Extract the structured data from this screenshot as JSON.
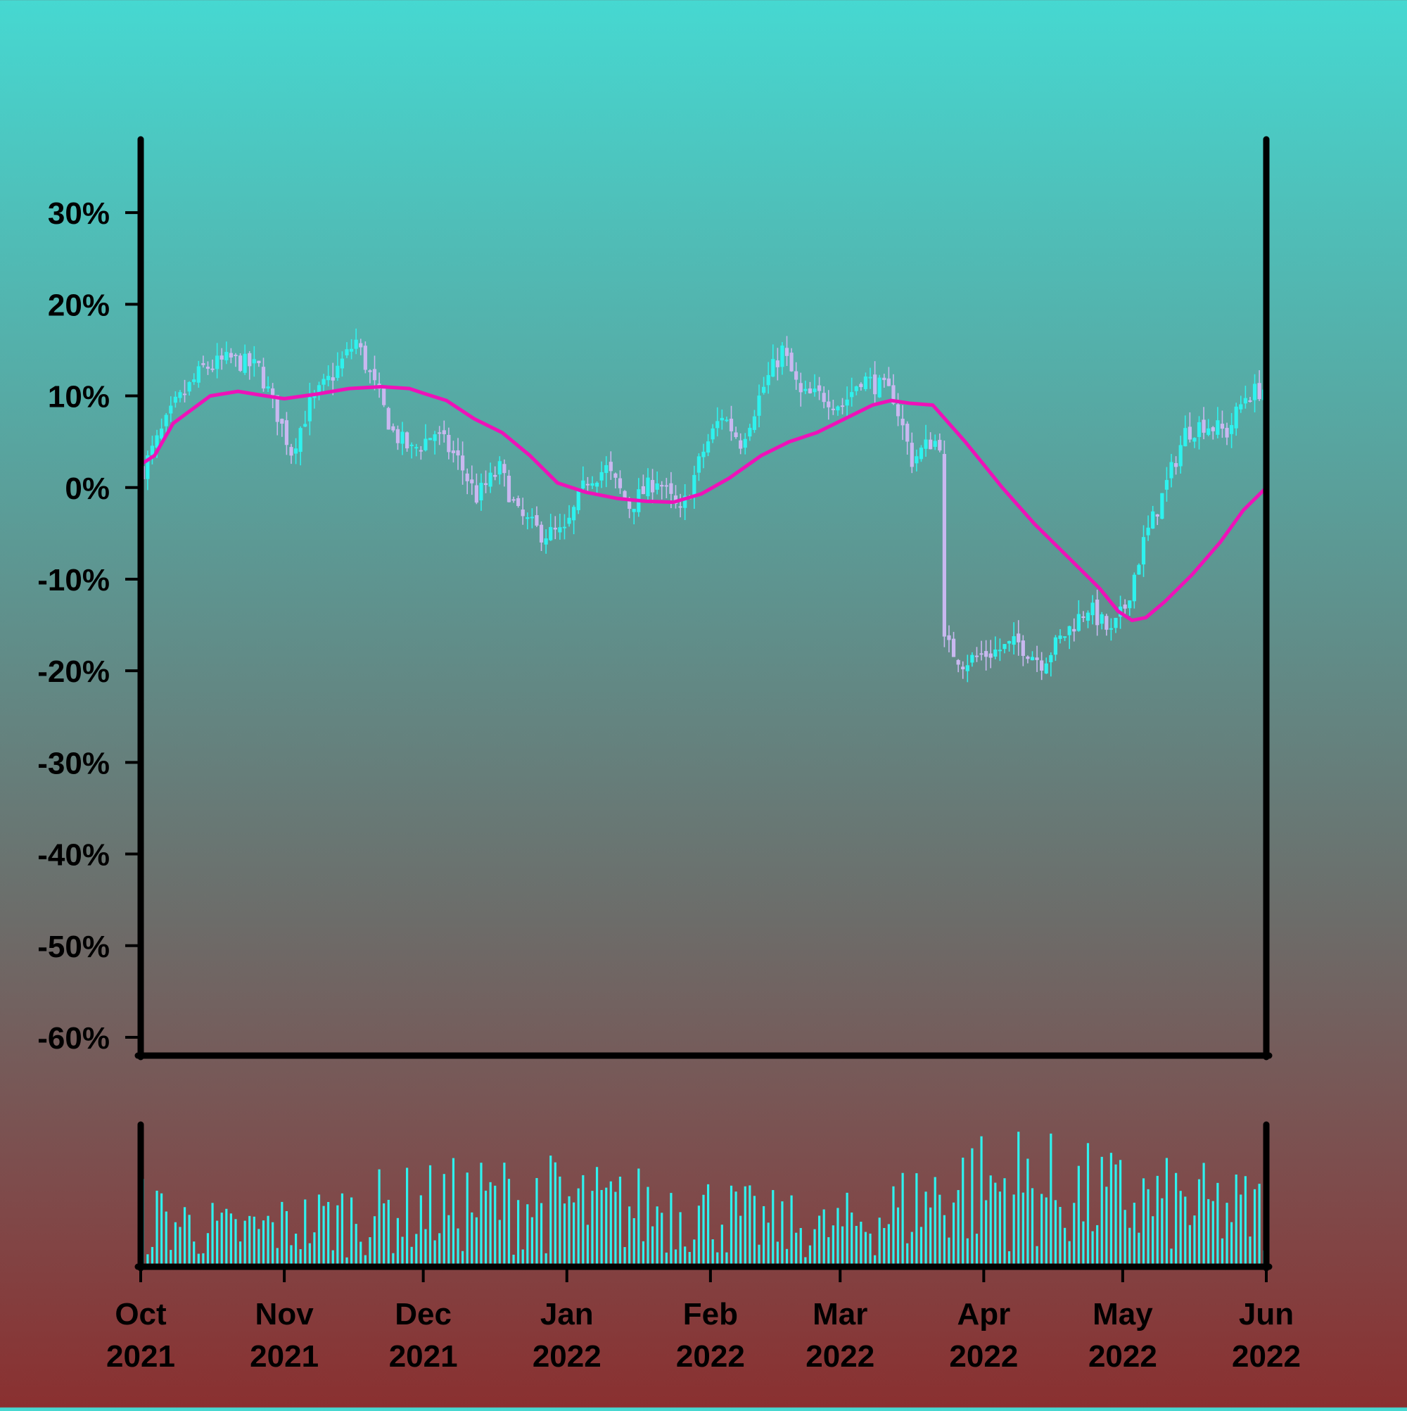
{
  "chart_data": [
    {
      "type": "candlestick",
      "panel": "price",
      "x_range": [
        "2021-10-01",
        "2022-06-01"
      ],
      "ylim": [
        -62,
        38
      ],
      "y_ticks": [
        30,
        20,
        10,
        0,
        -10,
        -20,
        -30,
        -40,
        -50,
        -60
      ],
      "y_tick_labels": [
        "30%",
        "20%",
        "10%",
        "0%",
        "-10%",
        "-20%",
        "-30%",
        "-40%",
        "-50%",
        "-60%"
      ],
      "y_unit": "%",
      "up_color": "#2ef2ee",
      "down_color": "#c9b8f0",
      "ma_color": "#ee12b8",
      "close_path": [
        [
          "2021-10-01",
          2
        ],
        [
          "2021-10-08",
          9
        ],
        [
          "2021-10-14",
          13
        ],
        [
          "2021-10-20",
          14
        ],
        [
          "2021-10-26",
          13
        ],
        [
          "2021-10-30",
          8
        ],
        [
          "2021-11-02",
          4
        ],
        [
          "2021-11-06",
          9
        ],
        [
          "2021-11-12",
          13
        ],
        [
          "2021-11-16",
          16
        ],
        [
          "2021-11-20",
          11
        ],
        [
          "2021-11-24",
          6
        ],
        [
          "2021-11-28",
          4
        ],
        [
          "2021-12-03",
          6
        ],
        [
          "2021-12-08",
          3
        ],
        [
          "2021-12-12",
          -1
        ],
        [
          "2021-12-17",
          2
        ],
        [
          "2021-12-21",
          -3
        ],
        [
          "2021-12-26",
          -5
        ],
        [
          "2021-12-31",
          -5
        ],
        [
          "2022-01-05",
          1
        ],
        [
          "2022-01-09",
          2
        ],
        [
          "2022-01-14",
          -2
        ],
        [
          "2022-01-20",
          1
        ],
        [
          "2022-01-25",
          -3
        ],
        [
          "2022-01-30",
          4
        ],
        [
          "2022-02-03",
          8
        ],
        [
          "2022-02-07",
          5
        ],
        [
          "2022-02-12",
          11
        ],
        [
          "2022-02-16",
          15
        ],
        [
          "2022-02-20",
          10
        ],
        [
          "2022-02-25",
          10
        ],
        [
          "2022-03-01",
          9
        ],
        [
          "2022-03-05",
          12
        ],
        [
          "2022-03-09",
          11
        ],
        [
          "2022-03-12",
          10
        ],
        [
          "2022-03-16",
          3
        ],
        [
          "2022-03-20",
          5
        ],
        [
          "2022-03-22",
          5
        ],
        [
          "2022-03-23",
          -17
        ],
        [
          "2022-03-27",
          -19
        ],
        [
          "2022-04-02",
          -18
        ],
        [
          "2022-04-08",
          -17
        ],
        [
          "2022-04-13",
          -19
        ],
        [
          "2022-04-18",
          -16
        ],
        [
          "2022-04-23",
          -13
        ],
        [
          "2022-04-28",
          -16
        ],
        [
          "2022-05-01",
          -13
        ],
        [
          "2022-05-05",
          -6
        ],
        [
          "2022-05-09",
          -1
        ],
        [
          "2022-05-14",
          6
        ],
        [
          "2022-05-18",
          7
        ],
        [
          "2022-05-23",
          6
        ],
        [
          "2022-05-27",
          10
        ],
        [
          "2022-06-01",
          11
        ]
      ],
      "moving_average": [
        [
          "2021-10-01",
          2.5
        ],
        [
          "2021-10-04",
          3.5
        ],
        [
          "2021-10-08",
          7
        ],
        [
          "2021-10-12",
          8.5
        ],
        [
          "2021-10-16",
          10
        ],
        [
          "2021-10-22",
          10.5
        ],
        [
          "2021-10-28",
          10
        ],
        [
          "2021-11-01",
          9.7
        ],
        [
          "2021-11-08",
          10.2
        ],
        [
          "2021-11-15",
          10.8
        ],
        [
          "2021-11-22",
          11
        ],
        [
          "2021-11-28",
          10.8
        ],
        [
          "2021-12-01",
          10.3
        ],
        [
          "2021-12-06",
          9.5
        ],
        [
          "2021-12-12",
          7.5
        ],
        [
          "2021-12-18",
          6
        ],
        [
          "2021-12-24",
          3.5
        ],
        [
          "2021-12-30",
          0.5
        ],
        [
          "2022-01-05",
          -0.5
        ],
        [
          "2022-01-12",
          -1.2
        ],
        [
          "2022-01-18",
          -1.5
        ],
        [
          "2022-01-24",
          -1.6
        ],
        [
          "2022-01-30",
          -0.7
        ],
        [
          "2022-02-05",
          1
        ],
        [
          "2022-02-12",
          3.5
        ],
        [
          "2022-02-18",
          5
        ],
        [
          "2022-02-24",
          6
        ],
        [
          "2022-03-02",
          7.5
        ],
        [
          "2022-03-08",
          9
        ],
        [
          "2022-03-12",
          9.5
        ],
        [
          "2022-03-16",
          9.2
        ],
        [
          "2022-03-21",
          9
        ],
        [
          "2022-03-28",
          5
        ],
        [
          "2022-04-05",
          0
        ],
        [
          "2022-04-12",
          -4
        ],
        [
          "2022-04-20",
          -8
        ],
        [
          "2022-04-26",
          -11
        ],
        [
          "2022-04-30",
          -13.5
        ],
        [
          "2022-05-03",
          -14.5
        ],
        [
          "2022-05-06",
          -14.2
        ],
        [
          "2022-05-10",
          -12.5
        ],
        [
          "2022-05-16",
          -9.5
        ],
        [
          "2022-05-22",
          -6
        ],
        [
          "2022-05-27",
          -2.5
        ],
        [
          "2022-06-01",
          0
        ]
      ]
    },
    {
      "type": "bar",
      "panel": "volume",
      "bar_color": "#2ef2ee",
      "x_ticks": [
        "2021-10-01",
        "2021-11-01",
        "2021-12-01",
        "2022-01-01",
        "2022-02-01",
        "2022-03-01",
        "2022-04-01",
        "2022-05-01",
        "2022-06-01"
      ],
      "x_tick_labels": [
        [
          "Oct",
          "2021"
        ],
        [
          "Nov",
          "2021"
        ],
        [
          "Dec",
          "2021"
        ],
        [
          "Jan",
          "2022"
        ],
        [
          "Feb",
          "2022"
        ],
        [
          "Mar",
          "2022"
        ],
        [
          "Apr",
          "2022"
        ],
        [
          "May",
          "2022"
        ],
        [
          "Jun",
          "2022"
        ]
      ],
      "volume_levels": [
        [
          "2021-10-01",
          0.45
        ],
        [
          "2021-10-20",
          0.3
        ],
        [
          "2021-11-05",
          0.38
        ],
        [
          "2021-11-20",
          0.48
        ],
        [
          "2021-12-10",
          0.55
        ],
        [
          "2021-12-25",
          0.58
        ],
        [
          "2022-01-10",
          0.5
        ],
        [
          "2022-01-25",
          0.52
        ],
        [
          "2022-02-10",
          0.4
        ],
        [
          "2022-02-25",
          0.32
        ],
        [
          "2022-03-10",
          0.45
        ],
        [
          "2022-03-25",
          0.68
        ],
        [
          "2022-04-08",
          0.72
        ],
        [
          "2022-04-22",
          0.62
        ],
        [
          "2022-05-08",
          0.55
        ],
        [
          "2022-05-22",
          0.5
        ],
        [
          "2022-06-01",
          0.48
        ]
      ]
    }
  ]
}
